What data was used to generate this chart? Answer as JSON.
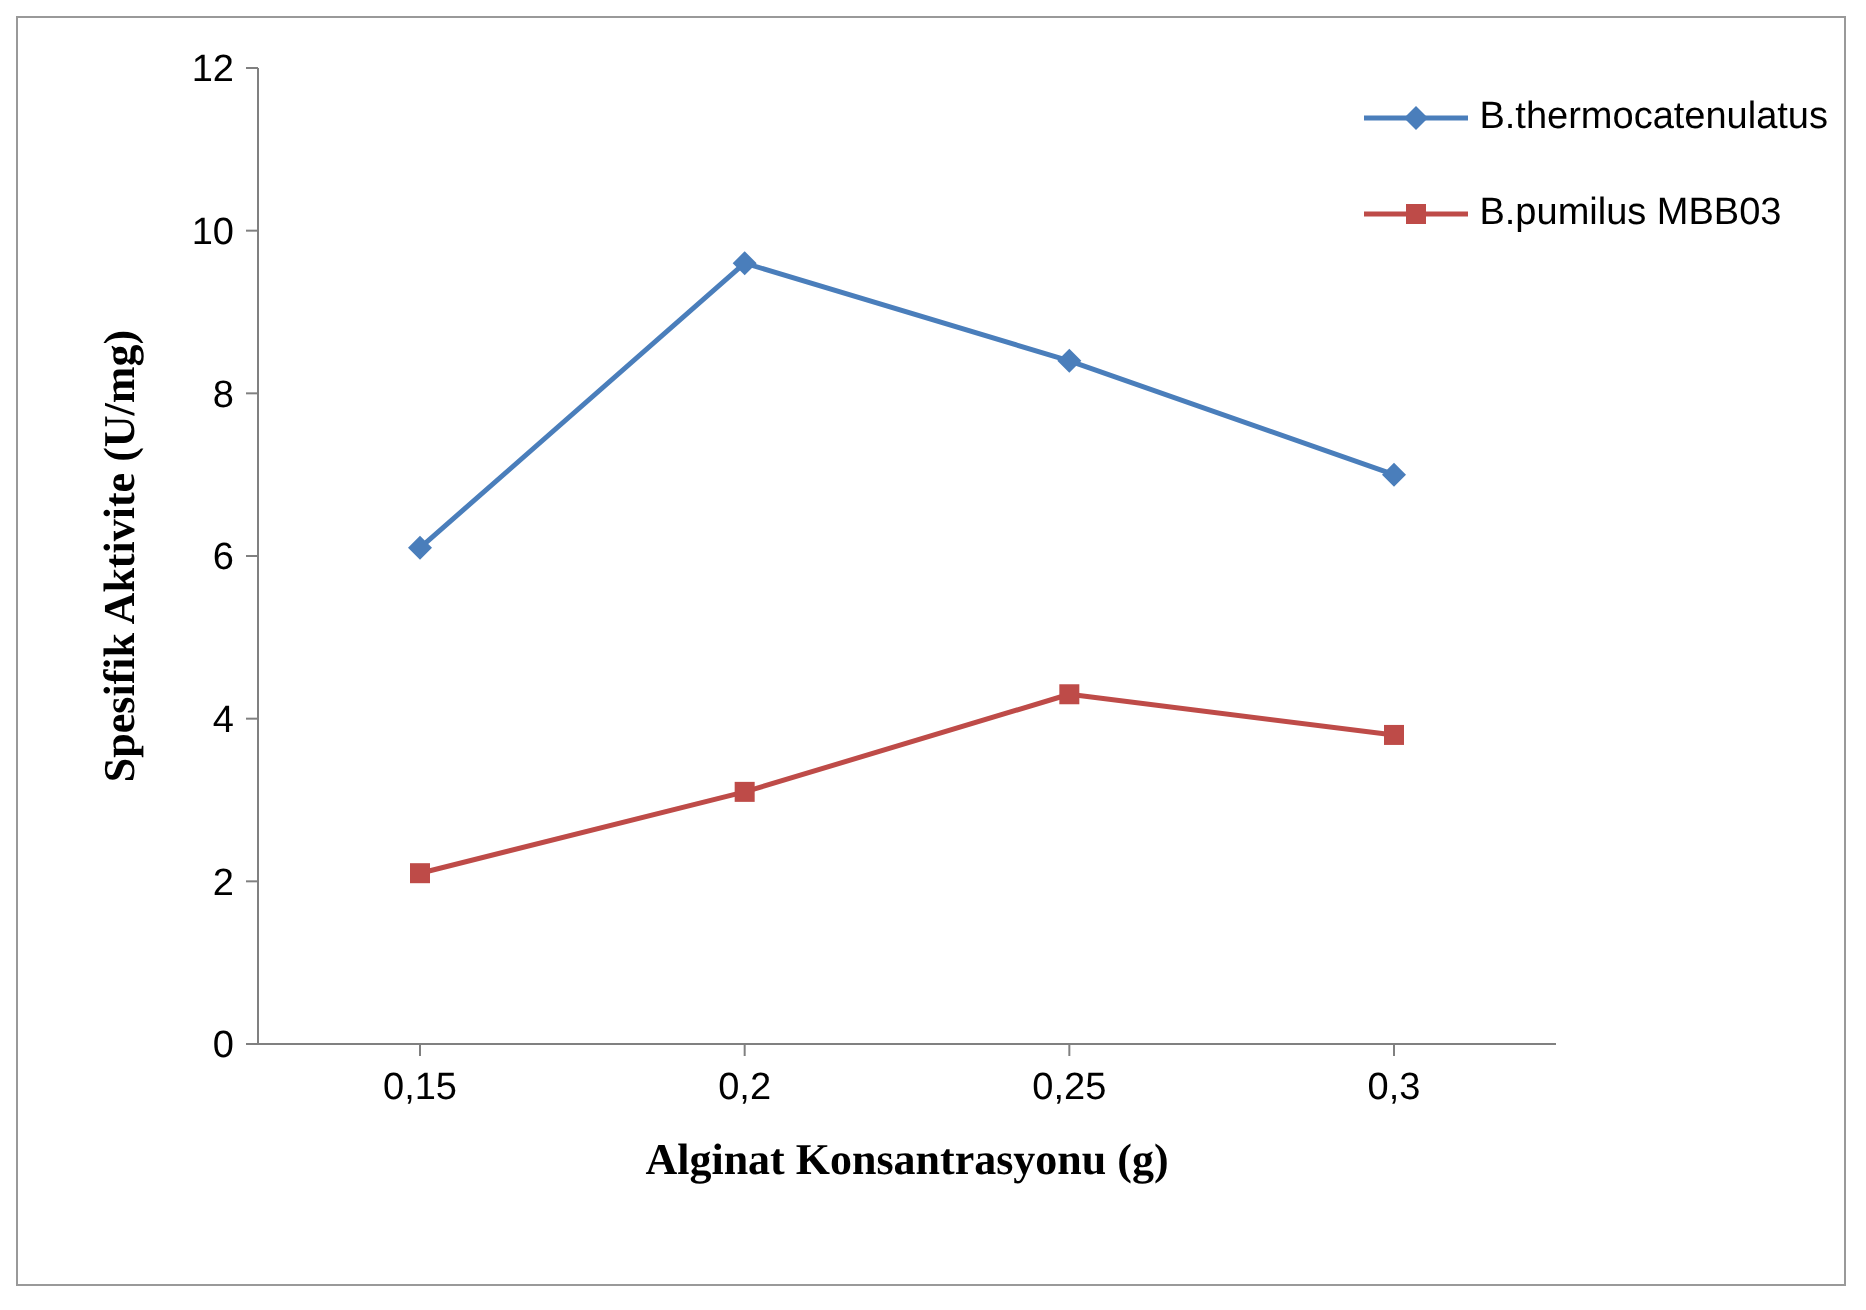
{
  "chart_data": {
    "type": "line",
    "xlabel": "Alginat Konsantrasyonu (g)",
    "ylabel": "Spesifik Aktivite (U/mg)",
    "categories": [
      "0,15",
      "0,2",
      "0,25",
      "0,3"
    ],
    "series": [
      {
        "name": "B.thermocatenulatus",
        "color": "#4a7ebb",
        "marker": "diamond",
        "values": [
          6.1,
          9.6,
          8.4,
          7.0
        ]
      },
      {
        "name": "B.pumilus MBB03",
        "color": "#be4b48",
        "marker": "square",
        "values": [
          2.1,
          3.1,
          4.3,
          3.8
        ]
      }
    ],
    "ylim": [
      0,
      12
    ],
    "yticks": [
      0,
      2,
      4,
      6,
      8,
      10,
      12
    ],
    "grid": false,
    "legend": "top right",
    "line_style": "solid"
  }
}
